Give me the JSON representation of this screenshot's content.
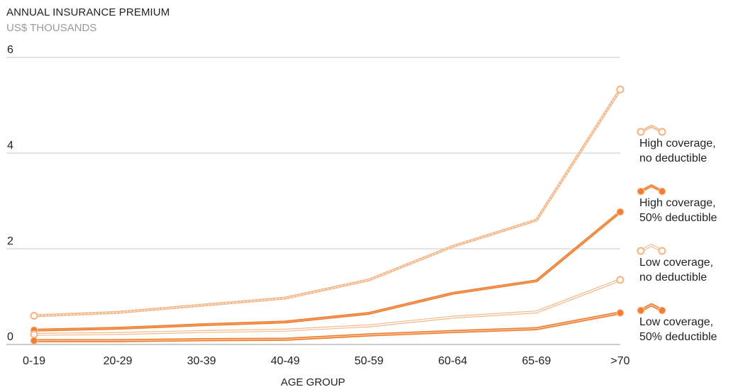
{
  "chart_data": {
    "type": "line",
    "title": "ANNUAL INSURANCE PREMIUM",
    "subtitle": "US$ THOUSANDS",
    "xlabel": "AGE GROUP",
    "ylabel": "",
    "ylim": [
      0,
      6
    ],
    "yticks": [
      "0",
      "2",
      "4",
      "6"
    ],
    "categories": [
      "0-19",
      "20-29",
      "30-39",
      "40-49",
      "50-59",
      "60-64",
      "65-69",
      ">70"
    ],
    "grid": true,
    "legend_position": "right",
    "series": [
      {
        "name": "High coverage, no deductible",
        "name_lines": [
          "High coverage,",
          "no deductible"
        ],
        "values": [
          0.6,
          0.67,
          0.82,
          0.97,
          1.35,
          2.05,
          2.6,
          5.33
        ],
        "color": "#f5b88a",
        "style": "dashed-double"
      },
      {
        "name": "High coverage, 50% deductible",
        "name_lines": [
          "High coverage,",
          "50% deductible"
        ],
        "values": [
          0.3,
          0.34,
          0.41,
          0.47,
          0.65,
          1.07,
          1.33,
          2.77
        ],
        "color": "#ee7f33",
        "style": "solid-thick"
      },
      {
        "name": "Low coverage, no deductible",
        "name_lines": [
          "Low coverage,",
          "no deductible"
        ],
        "values": [
          0.21,
          0.23,
          0.27,
          0.3,
          0.39,
          0.57,
          0.68,
          1.35
        ],
        "color": "#f5b88a",
        "style": "outline"
      },
      {
        "name": "Low coverage, 50% deductible",
        "name_lines": [
          "Low coverage,",
          "50% deductible"
        ],
        "values": [
          0.08,
          0.08,
          0.1,
          0.11,
          0.2,
          0.27,
          0.33,
          0.66
        ],
        "color": "#ee7f33",
        "style": "outline-thick"
      }
    ]
  }
}
